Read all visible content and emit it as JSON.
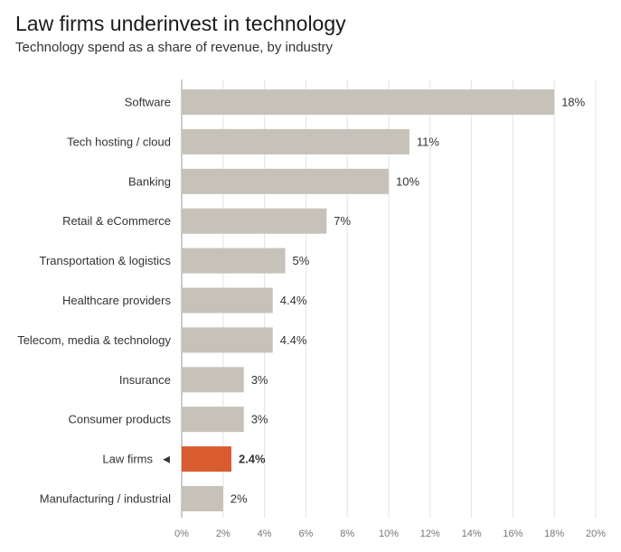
{
  "header": {
    "title": "Law firms underinvest in technology",
    "subtitle": "Technology spend as a share of revenue, by industry"
  },
  "chart_data": {
    "type": "bar",
    "orientation": "horizontal",
    "title": "Law firms underinvest in technology",
    "subtitle": "Technology spend as a share of revenue, by industry",
    "categories": [
      "Software",
      "Tech hosting / cloud",
      "Banking",
      "Retail & eCommerce",
      "Transportation & logistics",
      "Healthcare providers",
      "Telecom, media & technology",
      "Insurance",
      "Consumer products",
      "Law firms",
      "Manufacturing / industrial"
    ],
    "values": [
      18,
      11,
      10,
      7,
      5,
      4.4,
      4.4,
      3,
      3,
      2.4,
      2
    ],
    "value_labels": [
      "18%",
      "11%",
      "10%",
      "7%",
      "5%",
      "4.4%",
      "4.4%",
      "3%",
      "3%",
      "2.4%",
      "2%"
    ],
    "highlight_index": 9,
    "highlight_marker": "◄",
    "xlim": [
      0,
      20
    ],
    "xticks": [
      0,
      2,
      4,
      6,
      8,
      10,
      12,
      14,
      16,
      18,
      20
    ],
    "xtick_labels": [
      "0%",
      "2%",
      "4%",
      "6%",
      "8%",
      "10%",
      "12%",
      "14%",
      "16%",
      "18%",
      "20%"
    ],
    "xlabel": "",
    "ylabel": "",
    "grid": true,
    "colors": {
      "bar": "#c6c2b9",
      "highlight_bar": "#d95b30",
      "highlight_text": "#b03a14",
      "grid": "#e3e3e3",
      "axis": "#999999"
    }
  }
}
